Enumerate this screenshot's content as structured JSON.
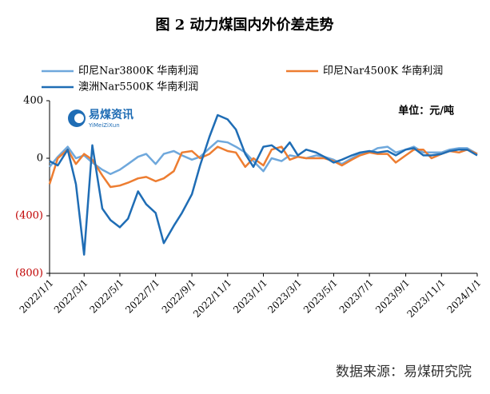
{
  "chart_data": {
    "type": "line",
    "title": "图 2   动力煤国内外价差走势",
    "unit_label": "单位：元/吨",
    "source": "数据来源：易煤研究院",
    "logo": {
      "name": "易煤资讯",
      "subname": "YiMeiZiXun"
    },
    "x": [
      "2022/1/1",
      "2022/1/15",
      "2022/2/1",
      "2022/2/15",
      "2022/3/1",
      "2022/3/15",
      "2022/4/1",
      "2022/4/15",
      "2022/5/1",
      "2022/5/15",
      "2022/6/1",
      "2022/6/15",
      "2022/7/1",
      "2022/7/15",
      "2022/8/1",
      "2022/8/15",
      "2022/9/1",
      "2022/9/15",
      "2022/10/1",
      "2022/10/15",
      "2022/11/1",
      "2022/11/15",
      "2022/12/1",
      "2022/12/15",
      "2023/1/1",
      "2023/1/15",
      "2023/2/1",
      "2023/2/15",
      "2023/3/1",
      "2023/3/15",
      "2023/4/1",
      "2023/4/15",
      "2023/5/1",
      "2023/5/15",
      "2023/6/1",
      "2023/6/15",
      "2023/7/1",
      "2023/7/15",
      "2023/8/1",
      "2023/8/15",
      "2023/9/1",
      "2023/9/15",
      "2023/10/1",
      "2023/10/15",
      "2023/11/1",
      "2023/11/15",
      "2023/12/1",
      "2023/12/15",
      "2024/1/1"
    ],
    "series": [
      {
        "name": "印尼Nar3800K 华南利润",
        "color": "#6fa8dc",
        "values": [
          -60,
          10,
          80,
          0,
          20,
          -30,
          -80,
          -110,
          -80,
          -40,
          10,
          30,
          -40,
          30,
          50,
          20,
          -10,
          10,
          70,
          120,
          110,
          80,
          40,
          -20,
          -90,
          0,
          -20,
          20,
          10,
          0,
          20,
          10,
          -10,
          -40,
          0,
          30,
          40,
          70,
          80,
          40,
          60,
          80,
          40,
          40,
          40,
          60,
          70,
          70,
          30
        ]
      },
      {
        "name": "印尼Nar4500K 华南利润",
        "color": "#ed7d31",
        "values": [
          -180,
          0,
          60,
          -40,
          30,
          -10,
          -120,
          -200,
          -190,
          -170,
          -140,
          -130,
          -160,
          -140,
          -90,
          40,
          50,
          0,
          30,
          80,
          50,
          40,
          -60,
          0,
          -50,
          60,
          80,
          -10,
          10,
          0,
          0,
          0,
          -20,
          -50,
          -10,
          20,
          40,
          30,
          30,
          -30,
          20,
          60,
          60,
          0,
          30,
          50,
          40,
          60,
          30
        ]
      },
      {
        "name": "澳洲Nar5500K 华南利润",
        "color": "#1f6db5",
        "values": [
          -20,
          -50,
          60,
          -180,
          -670,
          90,
          -350,
          -430,
          -480,
          -420,
          -230,
          -320,
          -380,
          -590,
          -470,
          -380,
          -250,
          -50,
          150,
          300,
          270,
          200,
          30,
          -60,
          80,
          90,
          40,
          110,
          20,
          60,
          40,
          10,
          -30,
          -10,
          20,
          40,
          50,
          40,
          50,
          20,
          60,
          70,
          20,
          20,
          30,
          50,
          60,
          60,
          20
        ]
      }
    ],
    "xlim": [
      "2022/1/1",
      "2024/1/1"
    ],
    "xticks": [
      "2022/1/1",
      "2022/3/1",
      "2022/5/1",
      "2022/7/1",
      "2022/9/1",
      "2022/11/1",
      "2023/1/1",
      "2023/3/1",
      "2023/5/1",
      "2023/7/1",
      "2023/9/1",
      "2023/11/1",
      "2024/1/1"
    ],
    "ylim": [
      -800,
      400
    ],
    "yticks": [
      400,
      0,
      {
        "value": -400,
        "label": "(400)"
      },
      {
        "value": -800,
        "label": "(800)"
      }
    ]
  }
}
